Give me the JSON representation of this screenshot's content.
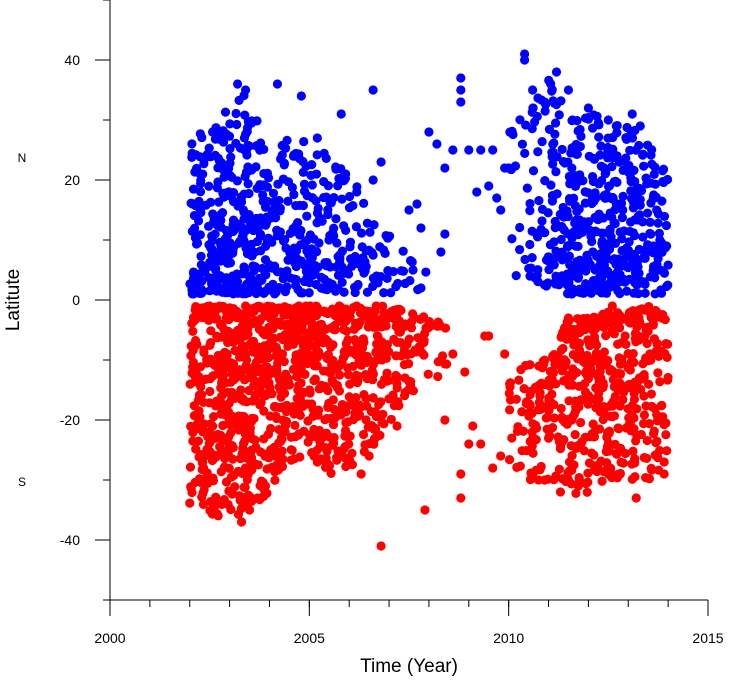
{
  "chart_data": {
    "type": "scatter",
    "title": "",
    "xlabel": "Time (Year)",
    "ylabel": "Latitute",
    "xlim": [
      2000,
      2015
    ],
    "ylim": [
      -50,
      50
    ],
    "xticks": [
      2000,
      2005,
      2010,
      2015
    ],
    "xticks_minor_step": 1,
    "yticks": [
      -40,
      -20,
      0,
      20,
      40
    ],
    "yticks_minor_step": 10,
    "grid": false,
    "legend": "none",
    "annotations": [
      {
        "text": "N",
        "y": 23
      },
      {
        "text": "S",
        "y": -31
      }
    ],
    "series": [
      {
        "color": "#0000ff",
        "hemisphere": "north",
        "envelope": [
          [
            2002.0,
            1,
            30
          ],
          [
            2002.5,
            1,
            29
          ],
          [
            2003.0,
            1,
            33
          ],
          [
            2003.5,
            1,
            35
          ],
          [
            2004.0,
            1,
            22
          ],
          [
            2004.5,
            1,
            28
          ],
          [
            2005.0,
            1,
            26
          ],
          [
            2005.5,
            1,
            24
          ],
          [
            2006.0,
            1,
            23
          ],
          [
            2006.5,
            1,
            15
          ],
          [
            2007.0,
            1,
            11
          ],
          [
            2007.5,
            1,
            8
          ],
          [
            2008.0,
            2,
            14
          ],
          [
            2010.0,
            4,
            29
          ],
          [
            2010.5,
            4,
            32
          ],
          [
            2011.0,
            2,
            37
          ],
          [
            2011.5,
            1,
            31
          ],
          [
            2012.0,
            1,
            32
          ],
          [
            2012.5,
            1,
            29
          ],
          [
            2013.0,
            1,
            30
          ],
          [
            2013.5,
            1,
            27
          ],
          [
            2014.0,
            1,
            21
          ]
        ],
        "density": [
          [
            2002.0,
            40
          ],
          [
            2002.5,
            100
          ],
          [
            2003.0,
            110
          ],
          [
            2003.5,
            90
          ],
          [
            2004.0,
            45
          ],
          [
            2004.5,
            55
          ],
          [
            2005.0,
            55
          ],
          [
            2005.5,
            45
          ],
          [
            2006.0,
            35
          ],
          [
            2006.5,
            22
          ],
          [
            2007.0,
            12
          ],
          [
            2007.5,
            6
          ],
          [
            2008.0,
            3
          ],
          [
            2010.0,
            6
          ],
          [
            2010.5,
            25
          ],
          [
            2011.0,
            55
          ],
          [
            2011.5,
            80
          ],
          [
            2012.0,
            90
          ],
          [
            2012.5,
            80
          ],
          [
            2013.0,
            75
          ],
          [
            2013.5,
            70
          ],
          [
            2014.0,
            35
          ]
        ],
        "points": [
          [
            2010.4,
            41
          ],
          [
            2010.4,
            40
          ],
          [
            2003.2,
            36
          ],
          [
            2003.4,
            35
          ],
          [
            2006.6,
            35
          ],
          [
            2008.8,
            37
          ],
          [
            2008.8,
            35
          ],
          [
            2008.8,
            33
          ],
          [
            2004.8,
            34
          ],
          [
            2004.2,
            36
          ],
          [
            2005.8,
            31
          ],
          [
            2005.2,
            27
          ],
          [
            2006.8,
            23
          ],
          [
            2006.6,
            20
          ],
          [
            2007.7,
            16
          ],
          [
            2007.5,
            15
          ],
          [
            2007.8,
            12
          ],
          [
            2008.4,
            11
          ],
          [
            2008.3,
            8
          ],
          [
            2008.0,
            28
          ],
          [
            2008.2,
            26
          ],
          [
            2008.6,
            25
          ],
          [
            2008.4,
            22
          ],
          [
            2009.0,
            25
          ],
          [
            2009.3,
            25
          ],
          [
            2009.6,
            25
          ],
          [
            2009.9,
            22
          ],
          [
            2010.0,
            22
          ],
          [
            2009.5,
            19
          ],
          [
            2009.7,
            17
          ],
          [
            2009.8,
            15
          ],
          [
            2009.2,
            18
          ],
          [
            2011.2,
            38
          ],
          [
            2011.5,
            35
          ],
          [
            2012.0,
            32
          ],
          [
            2012.5,
            30
          ],
          [
            2012.7,
            29
          ],
          [
            2013.3,
            29
          ],
          [
            2007.8,
            2
          ],
          [
            2007.6,
            5
          ],
          [
            2010.6,
            35
          ],
          [
            2010.9,
            33
          ],
          [
            2011.6,
            30
          ],
          [
            2013.1,
            31
          ]
        ]
      },
      {
        "color": "#ff0000",
        "hemisphere": "south",
        "envelope": [
          [
            2002.0,
            -34,
            -1
          ],
          [
            2002.5,
            -36,
            -1
          ],
          [
            2003.0,
            -37,
            -1
          ],
          [
            2003.5,
            -35,
            -1
          ],
          [
            2004.0,
            -32,
            -1
          ],
          [
            2004.5,
            -27,
            -1
          ],
          [
            2005.0,
            -27,
            -1
          ],
          [
            2005.5,
            -29,
            -1
          ],
          [
            2006.0,
            -28,
            -1
          ],
          [
            2006.5,
            -25,
            -1
          ],
          [
            2007.0,
            -21,
            -1
          ],
          [
            2007.5,
            -16,
            -2
          ],
          [
            2008.0,
            -14,
            -3
          ],
          [
            2008.5,
            -12,
            -4
          ],
          [
            2010.0,
            -27,
            -14
          ],
          [
            2010.5,
            -30,
            -10
          ],
          [
            2011.0,
            -31,
            -10
          ],
          [
            2011.5,
            -33,
            -3
          ],
          [
            2012.0,
            -32,
            -3
          ],
          [
            2012.5,
            -30,
            -2
          ],
          [
            2013.0,
            -30,
            -2
          ],
          [
            2013.5,
            -30,
            -1
          ],
          [
            2014.0,
            -27,
            -3
          ]
        ],
        "density": [
          [
            2002.0,
            70
          ],
          [
            2002.5,
            120
          ],
          [
            2003.0,
            130
          ],
          [
            2003.5,
            120
          ],
          [
            2004.0,
            100
          ],
          [
            2004.5,
            100
          ],
          [
            2005.0,
            100
          ],
          [
            2005.5,
            90
          ],
          [
            2006.0,
            85
          ],
          [
            2006.5,
            70
          ],
          [
            2007.0,
            55
          ],
          [
            2007.5,
            35
          ],
          [
            2008.0,
            18
          ],
          [
            2008.5,
            8
          ],
          [
            2010.0,
            10
          ],
          [
            2010.5,
            35
          ],
          [
            2011.0,
            55
          ],
          [
            2011.5,
            75
          ],
          [
            2012.0,
            85
          ],
          [
            2012.5,
            80
          ],
          [
            2013.0,
            80
          ],
          [
            2013.5,
            75
          ],
          [
            2014.0,
            40
          ]
        ],
        "points": [
          [
            2006.8,
            -41
          ],
          [
            2007.9,
            -35
          ],
          [
            2008.8,
            -33
          ],
          [
            2008.8,
            -29
          ],
          [
            2008.4,
            -20
          ],
          [
            2009.0,
            -24
          ],
          [
            2009.3,
            -24
          ],
          [
            2009.1,
            -21
          ],
          [
            2009.6,
            -28
          ],
          [
            2009.8,
            -26
          ],
          [
            2009.4,
            -6
          ],
          [
            2009.5,
            -6
          ],
          [
            2009.9,
            -9
          ],
          [
            2008.6,
            -9
          ],
          [
            2008.9,
            -12
          ],
          [
            2003.3,
            -37
          ],
          [
            2003.5,
            -35
          ],
          [
            2003.7,
            -33
          ],
          [
            2003.9,
            -31
          ],
          [
            2006.5,
            -26
          ],
          [
            2006.3,
            -29
          ],
          [
            2007.2,
            -21
          ],
          [
            2013.2,
            -33
          ],
          [
            2012.8,
            -29
          ],
          [
            2013.9,
            -29
          ],
          [
            2013.9,
            -27
          ],
          [
            2010.9,
            -30
          ],
          [
            2011.3,
            -32
          ],
          [
            2012.6,
            -1
          ],
          [
            2011.5,
            -3
          ],
          [
            2005.2,
            -27
          ],
          [
            2005.4,
            -27
          ]
        ]
      }
    ]
  }
}
